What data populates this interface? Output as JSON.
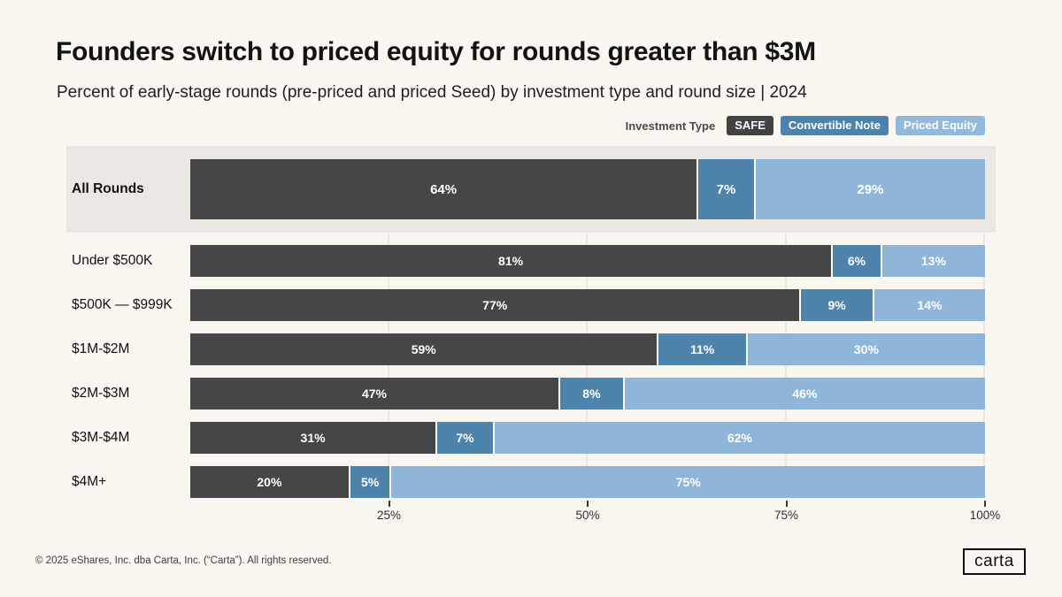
{
  "page": {
    "title": "Founders switch to priced equity for rounds greater than $3M",
    "subtitle": "Percent of early-stage rounds (pre-priced and priced Seed) by investment type and round size | 2024",
    "footer": "© 2025 eShares, Inc. dba Carta, Inc. (“Carta”). All rights reserved.",
    "logo_text": "carta",
    "background_color": "#faf6f0",
    "highlight_row_color": "#ebe8e4"
  },
  "legend": {
    "label": "Investment Type",
    "items": [
      {
        "name": "SAFE",
        "color": "#424242"
      },
      {
        "name": "Convertible Note",
        "color": "#4d82ab"
      },
      {
        "name": "Priced Equity",
        "color": "#92b8da"
      }
    ]
  },
  "chart_data": {
    "type": "bar",
    "orientation": "horizontal-stacked",
    "unit": "%",
    "title": "Founders switch to priced equity for rounds greater than $3M",
    "subtitle": "Percent of early-stage rounds (pre-priced and priced Seed) by investment type and round size | 2024",
    "categories": [
      "All Rounds",
      "Under $500K",
      "$500K — $999K",
      "$1M-$2M",
      "$2M-$3M",
      "$3M-$4M",
      "$4M+"
    ],
    "highlighted_category": "All Rounds",
    "series": [
      {
        "name": "SAFE",
        "color": "#464646",
        "values": [
          64,
          81,
          77,
          59,
          47,
          31,
          20
        ]
      },
      {
        "name": "Convertible Note",
        "color": "#4e83ab",
        "values": [
          7,
          6,
          9,
          11,
          8,
          7,
          5
        ]
      },
      {
        "name": "Priced Equity",
        "color": "#8fb5d8",
        "values": [
          29,
          13,
          14,
          30,
          46,
          62,
          75
        ]
      }
    ],
    "xlim": [
      0,
      100
    ],
    "x_ticks": [
      {
        "value": 25,
        "label": "25%"
      },
      {
        "value": 50,
        "label": "50%"
      },
      {
        "value": 75,
        "label": "75%"
      },
      {
        "value": 100,
        "label": "100%"
      }
    ],
    "grid": true,
    "legend_position": "top-right",
    "value_labels": "inside-white-bold"
  }
}
